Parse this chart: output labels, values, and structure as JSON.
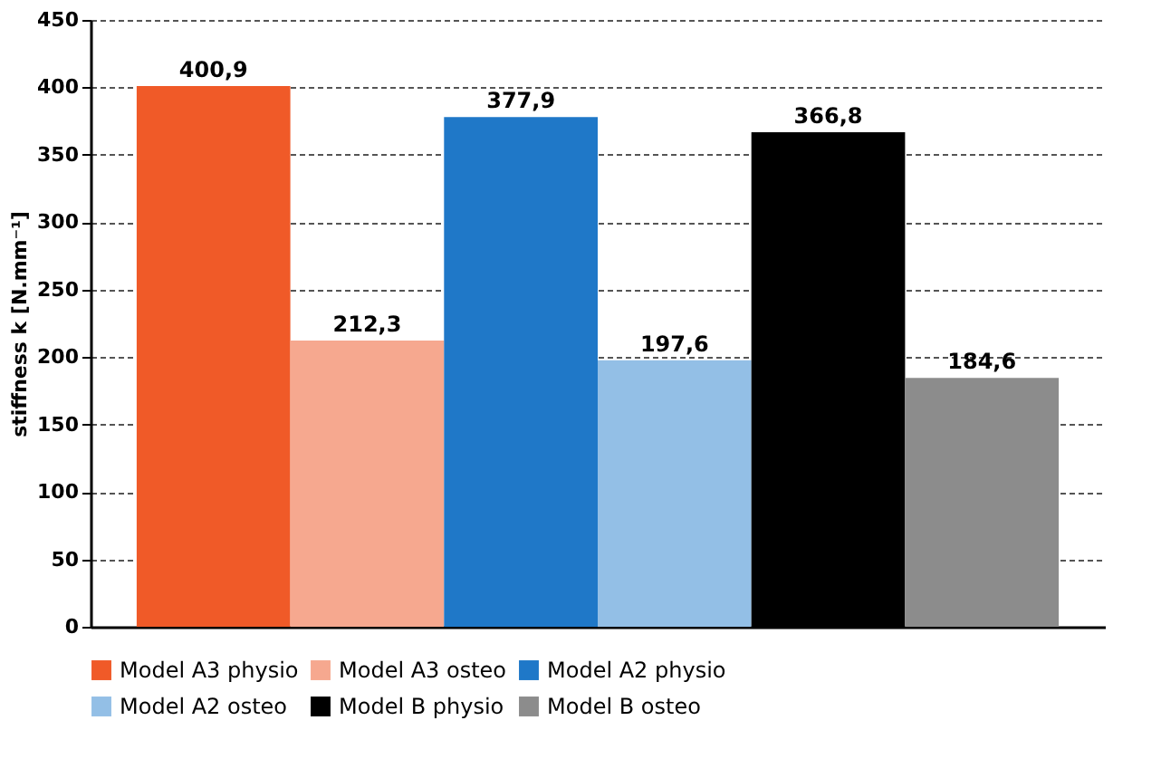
{
  "chart_data": {
    "type": "bar",
    "ylabel": "stiffness k [N.mm⁻¹]",
    "categories": [
      null,
      null,
      null,
      null,
      null,
      null
    ],
    "series": [
      {
        "name": "Model A3 physio",
        "color": "#f05a28",
        "values": [
          400.9,
          null,
          null,
          null,
          null,
          null
        ],
        "value_labels": [
          "400,9",
          null,
          null,
          null,
          null,
          null
        ]
      },
      {
        "name": "Model A3 osteo",
        "color": "#f6a88f",
        "values": [
          null,
          212.3,
          null,
          null,
          null,
          null
        ],
        "value_labels": [
          null,
          "212,3",
          null,
          null,
          null,
          null
        ]
      },
      {
        "name": "Model A2 physio",
        "color": "#1f78c8",
        "values": [
          null,
          null,
          377.9,
          null,
          null,
          null
        ],
        "value_labels": [
          null,
          null,
          "377,9",
          null,
          null,
          null
        ]
      },
      {
        "name": "Model A2 osteo",
        "color": "#93bfe6",
        "values": [
          null,
          null,
          null,
          197.6,
          null,
          null
        ],
        "value_labels": [
          null,
          null,
          null,
          "197,6",
          null,
          null
        ]
      },
      {
        "name": "Model B physio",
        "color": "#000000",
        "values": [
          null,
          null,
          null,
          null,
          366.8,
          null
        ],
        "value_labels": [
          null,
          null,
          null,
          null,
          "366,8",
          null
        ]
      },
      {
        "name": "Model B osteo",
        "color": "#8c8c8c",
        "values": [
          null,
          null,
          null,
          null,
          null,
          184.6
        ],
        "value_labels": [
          null,
          null,
          null,
          null,
          null,
          "184,6"
        ]
      }
    ],
    "ylim": [
      0,
      450
    ],
    "yticks": [
      0,
      50,
      100,
      150,
      200,
      250,
      300,
      350,
      400,
      450
    ],
    "grid": "y",
    "legend": "bottom",
    "tick_labels": "y"
  }
}
